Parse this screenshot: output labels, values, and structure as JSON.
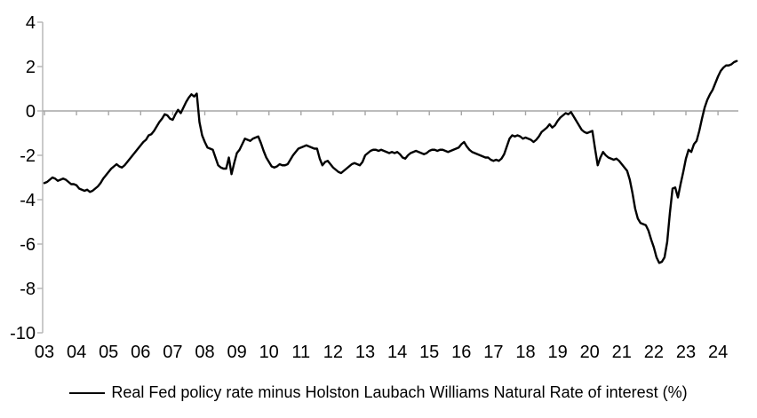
{
  "chart_data": {
    "type": "line",
    "title": "",
    "xlabel": "",
    "ylabel": "",
    "ylim": [
      -10,
      4
    ],
    "y_ticks": [
      "4",
      "2",
      "0",
      "-2",
      "-4",
      "-6",
      "-8",
      "-10"
    ],
    "y_tick_values": [
      4,
      2,
      0,
      -2,
      -4,
      -6,
      -8,
      -10
    ],
    "x_tick_labels": [
      "03",
      "04",
      "05",
      "06",
      "07",
      "08",
      "09",
      "10",
      "11",
      "12",
      "13",
      "14",
      "15",
      "16",
      "17",
      "18",
      "19",
      "20",
      "21",
      "22",
      "23",
      "24"
    ],
    "grid": false,
    "zero_line": true,
    "legend_position": "bottom",
    "colors": {
      "line": "#000000",
      "axis": "#b3b3b3",
      "zero_line": "#a6a6a6",
      "text": "#000000"
    },
    "series": [
      {
        "name": "Real Fed policy rate minus Holston Laubach Williams Natural Rate of interest (%)",
        "color": "#000000",
        "frequency": "monthly",
        "start_year": 2003,
        "start_month": 1,
        "values": [
          -3.25,
          -3.2,
          -3.1,
          -3.0,
          -3.05,
          -3.15,
          -3.1,
          -3.05,
          -3.1,
          -3.2,
          -3.3,
          -3.3,
          -3.35,
          -3.5,
          -3.55,
          -3.6,
          -3.55,
          -3.65,
          -3.6,
          -3.5,
          -3.4,
          -3.25,
          -3.05,
          -2.9,
          -2.75,
          -2.6,
          -2.5,
          -2.4,
          -2.5,
          -2.55,
          -2.45,
          -2.3,
          -2.15,
          -2.0,
          -1.85,
          -1.7,
          -1.55,
          -1.4,
          -1.3,
          -1.1,
          -1.05,
          -0.9,
          -0.7,
          -0.5,
          -0.35,
          -0.15,
          -0.2,
          -0.35,
          -0.4,
          -0.15,
          0.05,
          -0.1,
          0.15,
          0.4,
          0.6,
          0.75,
          0.65,
          0.78,
          -0.5,
          -1.1,
          -1.4,
          -1.65,
          -1.7,
          -1.75,
          -2.1,
          -2.45,
          -2.55,
          -2.6,
          -2.6,
          -2.1,
          -2.85,
          -2.35,
          -1.9,
          -1.75,
          -1.5,
          -1.25,
          -1.3,
          -1.35,
          -1.25,
          -1.2,
          -1.15,
          -1.45,
          -1.8,
          -2.1,
          -2.3,
          -2.5,
          -2.55,
          -2.5,
          -2.4,
          -2.45,
          -2.45,
          -2.4,
          -2.2,
          -2.0,
          -1.85,
          -1.7,
          -1.65,
          -1.6,
          -1.55,
          -1.6,
          -1.65,
          -1.7,
          -1.7,
          -2.15,
          -2.45,
          -2.3,
          -2.25,
          -2.4,
          -2.55,
          -2.65,
          -2.75,
          -2.8,
          -2.7,
          -2.6,
          -2.5,
          -2.4,
          -2.35,
          -2.4,
          -2.45,
          -2.3,
          -2.0,
          -1.9,
          -1.8,
          -1.75,
          -1.75,
          -1.8,
          -1.75,
          -1.8,
          -1.85,
          -1.9,
          -1.85,
          -1.9,
          -1.85,
          -1.95,
          -2.1,
          -2.15,
          -2.0,
          -1.9,
          -1.85,
          -1.8,
          -1.85,
          -1.9,
          -1.95,
          -1.9,
          -1.8,
          -1.75,
          -1.75,
          -1.8,
          -1.75,
          -1.75,
          -1.8,
          -1.85,
          -1.8,
          -1.75,
          -1.7,
          -1.65,
          -1.5,
          -1.4,
          -1.6,
          -1.75,
          -1.85,
          -1.9,
          -1.95,
          -2.0,
          -2.05,
          -2.1,
          -2.1,
          -2.2,
          -2.25,
          -2.2,
          -2.25,
          -2.15,
          -1.95,
          -1.6,
          -1.25,
          -1.1,
          -1.15,
          -1.1,
          -1.15,
          -1.25,
          -1.2,
          -1.25,
          -1.3,
          -1.4,
          -1.3,
          -1.15,
          -0.95,
          -0.85,
          -0.75,
          -0.6,
          -0.75,
          -0.65,
          -0.45,
          -0.3,
          -0.2,
          -0.1,
          -0.15,
          -0.05,
          -0.25,
          -0.45,
          -0.65,
          -0.85,
          -0.95,
          -1.0,
          -0.95,
          -0.9,
          -1.7,
          -2.45,
          -2.1,
          -1.85,
          -2.0,
          -2.1,
          -2.15,
          -2.2,
          -2.15,
          -2.25,
          -2.4,
          -2.55,
          -2.7,
          -3.1,
          -3.7,
          -4.4,
          -4.85,
          -5.05,
          -5.1,
          -5.15,
          -5.4,
          -5.8,
          -6.15,
          -6.6,
          -6.85,
          -6.8,
          -6.6,
          -5.9,
          -4.6,
          -3.5,
          -3.45,
          -3.9,
          -3.3,
          -2.75,
          -2.15,
          -1.75,
          -1.85,
          -1.5,
          -1.35,
          -0.9,
          -0.35,
          0.15,
          0.5,
          0.75,
          0.95,
          1.25,
          1.55,
          1.8,
          1.95,
          2.05,
          2.05,
          2.1,
          2.2,
          2.25
        ]
      }
    ]
  },
  "legend": {
    "label": "Real Fed policy rate minus Holston Laubach Williams Natural Rate of interest (%)"
  }
}
